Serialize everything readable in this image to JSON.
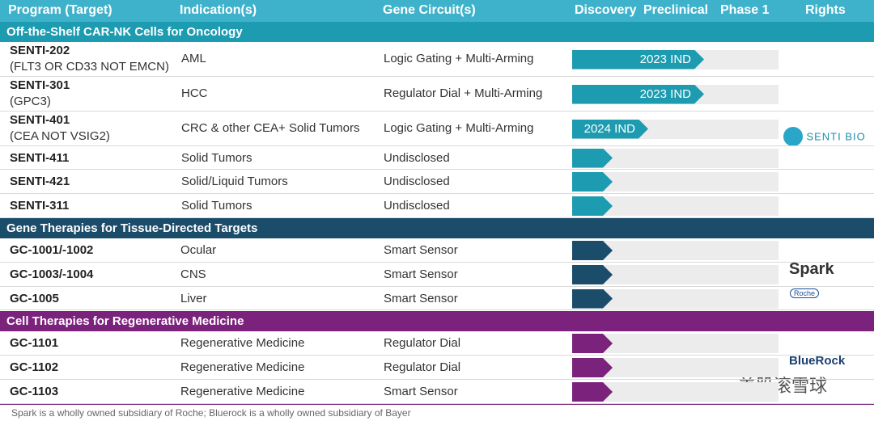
{
  "header": {
    "program": "Program (Target)",
    "indication": "Indication(s)",
    "circuit": "Gene Circuit(s)",
    "discovery": "Discovery",
    "preclinical": "Preclinical",
    "phase1": "Phase 1",
    "rights": "Rights"
  },
  "sections": [
    {
      "title": "Off-the-Shelf CAR-NK Cells for Oncology",
      "rows": [
        {
          "program": "SENTI-202",
          "target": "(FLT3 OR CD33 NOT EMCN)",
          "indication": "AML",
          "circuit": "Logic Gating + Multi-Arming",
          "ind": "2023 IND"
        },
        {
          "program": "SENTI-301",
          "target": "(GPC3)",
          "indication": "HCC",
          "circuit": "Regulator Dial + Multi-Arming",
          "ind": "2023 IND"
        },
        {
          "program": "SENTI-401",
          "target": "(CEA NOT VSIG2)",
          "indication": "CRC & other CEA+ Solid Tumors",
          "circuit": "Logic Gating + Multi-Arming",
          "ind": "2024 IND"
        },
        {
          "program": "SENTI-411",
          "indication": "Solid Tumors",
          "circuit": "Undisclosed"
        },
        {
          "program": "SENTI-421",
          "indication": "Solid/Liquid Tumors",
          "circuit": "Undisclosed"
        },
        {
          "program": "SENTI-311",
          "indication": "Solid Tumors",
          "circuit": "Undisclosed"
        }
      ]
    },
    {
      "title": "Gene Therapies for Tissue-Directed Targets",
      "rows": [
        {
          "program": "GC-1001/-1002",
          "indication": "Ocular",
          "circuit": "Smart Sensor"
        },
        {
          "program": "GC-1003/-1004",
          "indication": "CNS",
          "circuit": "Smart Sensor"
        },
        {
          "program": "GC-1005",
          "indication": "Liver",
          "circuit": "Smart Sensor"
        }
      ]
    },
    {
      "title": "Cell Therapies for Regenerative Medicine",
      "rows": [
        {
          "program": "GC-1101",
          "indication": "Regenerative Medicine",
          "circuit": "Regulator Dial"
        },
        {
          "program": "GC-1102",
          "indication": "Regenerative Medicine",
          "circuit": "Regulator Dial"
        },
        {
          "program": "GC-1103",
          "indication": "Regenerative Medicine",
          "circuit": "Smart Sensor"
        }
      ]
    }
  ],
  "logos": {
    "senti": "SENTI BIO",
    "spark": "Spark",
    "roche": "Roche",
    "bluerock": "BlueRock"
  },
  "watermark": "美股滚雪球",
  "footnote": "Spark is a wholly owned subsidiary of Roche; Bluerock is a wholly owned subsidiary of Bayer"
}
